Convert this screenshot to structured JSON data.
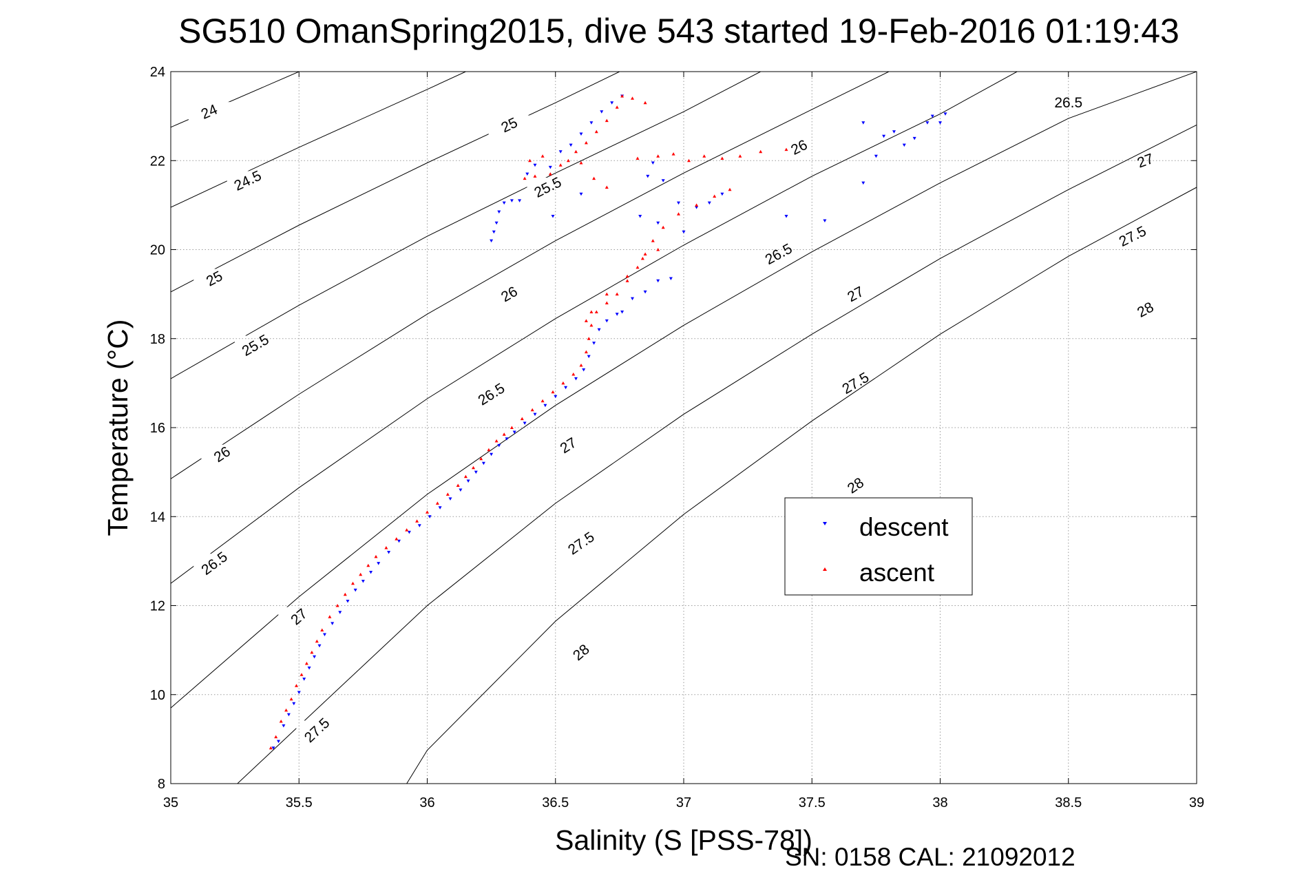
{
  "chart_data": {
    "type": "scatter",
    "title": "SG510 OmanSpring2015, dive 543 started 19-Feb-2016 01:19:43",
    "xlabel": "Salinity (S [PSS-78])",
    "ylabel": "Temperature (°C)",
    "xlim": [
      35,
      39
    ],
    "ylim": [
      8,
      24
    ],
    "x_ticks": [
      "35",
      "35.5",
      "36",
      "36.5",
      "37",
      "37.5",
      "38",
      "38.5",
      "39"
    ],
    "y_ticks": [
      "8",
      "10",
      "12",
      "14",
      "16",
      "18",
      "20",
      "22",
      "24"
    ],
    "grid": true,
    "legend_position": "right",
    "footer": "SN: 0158  CAL: 21092012",
    "colors": {
      "descent": "#0000ff",
      "ascent": "#ff0000",
      "contour": "#000000",
      "grid": "#9a9a9a"
    },
    "contours": [
      {
        "label": "24",
        "points": [
          [
            35.0,
            22.75
          ],
          [
            35.5,
            24.0
          ]
        ],
        "label_at": [
          [
            35.15,
            23.1
          ]
        ]
      },
      {
        "label": "24.5",
        "points": [
          [
            35.0,
            20.95
          ],
          [
            35.5,
            22.3
          ],
          [
            36.0,
            23.6
          ],
          [
            36.15,
            24.0
          ]
        ],
        "label_at": [
          [
            35.3,
            21.55
          ]
        ]
      },
      {
        "label": "25",
        "points": [
          [
            35.0,
            19.05
          ],
          [
            35.5,
            20.55
          ],
          [
            36.0,
            21.95
          ],
          [
            36.5,
            23.3
          ],
          [
            36.75,
            24.0
          ]
        ],
        "label_at": [
          [
            35.17,
            19.35
          ],
          [
            36.32,
            22.8
          ]
        ]
      },
      {
        "label": "25.5",
        "points": [
          [
            35.0,
            17.1
          ],
          [
            35.5,
            18.75
          ],
          [
            36.0,
            20.3
          ],
          [
            36.5,
            21.72
          ],
          [
            37.0,
            23.1
          ],
          [
            37.3,
            24.0
          ]
        ],
        "label_at": [
          [
            35.33,
            17.85
          ],
          [
            36.47,
            21.4
          ]
        ]
      },
      {
        "label": "26",
        "points": [
          [
            35.0,
            14.85
          ],
          [
            35.5,
            16.75
          ],
          [
            36.0,
            18.55
          ],
          [
            36.5,
            20.2
          ],
          [
            37.0,
            21.72
          ],
          [
            37.5,
            23.15
          ],
          [
            37.8,
            24.0
          ]
        ],
        "label_at": [
          [
            35.2,
            15.4
          ],
          [
            36.32,
            19.0
          ],
          [
            37.45,
            22.3
          ]
        ]
      },
      {
        "label": "26.5",
        "points": [
          [
            35.0,
            12.5
          ],
          [
            35.5,
            14.65
          ],
          [
            36.0,
            16.65
          ],
          [
            36.5,
            18.45
          ],
          [
            37.0,
            20.1
          ],
          [
            37.5,
            21.65
          ],
          [
            38.0,
            23.05
          ],
          [
            38.3,
            24.0
          ]
        ],
        "label_at": [
          [
            35.17,
            12.95
          ],
          [
            36.25,
            16.75
          ],
          [
            37.37,
            19.9
          ],
          [
            38.5,
            23.3
          ]
        ]
      },
      {
        "label": "27",
        "points": [
          [
            35.0,
            9.7
          ],
          [
            35.5,
            12.2
          ],
          [
            36.0,
            14.5
          ],
          [
            36.5,
            16.5
          ],
          [
            37.0,
            18.3
          ],
          [
            37.5,
            19.95
          ],
          [
            38.0,
            21.5
          ],
          [
            38.5,
            22.95
          ],
          [
            39.0,
            24.0
          ]
        ],
        "label_at": [
          [
            35.5,
            11.75
          ],
          [
            36.55,
            15.6
          ],
          [
            37.67,
            19.0
          ],
          [
            38.8,
            22.0
          ]
        ]
      },
      {
        "label": "27.5",
        "points": [
          [
            35.26,
            8.0
          ],
          [
            35.5,
            9.3
          ],
          [
            36.0,
            12.0
          ],
          [
            36.5,
            14.3
          ],
          [
            37.0,
            16.3
          ],
          [
            37.5,
            18.1
          ],
          [
            38.0,
            19.8
          ],
          [
            38.5,
            21.35
          ],
          [
            39.0,
            22.8
          ]
        ],
        "label_at": [
          [
            35.57,
            9.2
          ],
          [
            36.6,
            13.4
          ],
          [
            37.67,
            17.0
          ],
          [
            38.75,
            20.3
          ]
        ]
      },
      {
        "label": "28",
        "points": [
          [
            35.92,
            8.0
          ],
          [
            36.0,
            8.75
          ],
          [
            36.5,
            11.65
          ],
          [
            37.0,
            14.05
          ],
          [
            37.5,
            16.15
          ],
          [
            38.0,
            18.1
          ],
          [
            38.5,
            19.85
          ],
          [
            39.0,
            21.4
          ]
        ],
        "label_at": [
          [
            36.6,
            10.95
          ],
          [
            37.67,
            14.7
          ],
          [
            38.8,
            18.65
          ]
        ]
      }
    ],
    "series": [
      {
        "name": "descent",
        "marker": "triangle-down",
        "points": [
          [
            35.4,
            8.8
          ],
          [
            35.42,
            8.95
          ],
          [
            35.44,
            9.3
          ],
          [
            35.46,
            9.55
          ],
          [
            35.48,
            9.8
          ],
          [
            35.5,
            10.05
          ],
          [
            35.52,
            10.35
          ],
          [
            35.54,
            10.6
          ],
          [
            35.56,
            10.85
          ],
          [
            35.58,
            11.1
          ],
          [
            35.6,
            11.35
          ],
          [
            35.63,
            11.6
          ],
          [
            35.66,
            11.85
          ],
          [
            35.69,
            12.1
          ],
          [
            35.72,
            12.35
          ],
          [
            35.75,
            12.55
          ],
          [
            35.78,
            12.75
          ],
          [
            35.81,
            12.95
          ],
          [
            35.85,
            13.2
          ],
          [
            35.89,
            13.45
          ],
          [
            35.93,
            13.65
          ],
          [
            35.97,
            13.8
          ],
          [
            36.01,
            14.0
          ],
          [
            36.05,
            14.2
          ],
          [
            36.09,
            14.4
          ],
          [
            36.13,
            14.6
          ],
          [
            36.16,
            14.8
          ],
          [
            36.19,
            15.0
          ],
          [
            36.22,
            15.2
          ],
          [
            36.25,
            15.4
          ],
          [
            36.28,
            15.6
          ],
          [
            36.31,
            15.75
          ],
          [
            36.34,
            15.9
          ],
          [
            36.38,
            16.1
          ],
          [
            36.42,
            16.3
          ],
          [
            36.46,
            16.5
          ],
          [
            36.5,
            16.7
          ],
          [
            36.54,
            16.9
          ],
          [
            36.58,
            17.1
          ],
          [
            36.61,
            17.3
          ],
          [
            36.63,
            17.6
          ],
          [
            36.65,
            17.9
          ],
          [
            36.67,
            18.2
          ],
          [
            36.7,
            18.4
          ],
          [
            36.74,
            18.55
          ],
          [
            36.76,
            18.6
          ],
          [
            36.25,
            20.2
          ],
          [
            36.26,
            20.4
          ],
          [
            36.27,
            20.6
          ],
          [
            36.28,
            20.85
          ],
          [
            36.3,
            21.05
          ],
          [
            36.33,
            21.1
          ],
          [
            36.36,
            21.1
          ],
          [
            36.49,
            20.75
          ],
          [
            36.6,
            21.25
          ],
          [
            36.39,
            21.7
          ],
          [
            36.42,
            21.9
          ],
          [
            36.48,
            21.85
          ],
          [
            36.52,
            22.2
          ],
          [
            36.56,
            22.35
          ],
          [
            36.6,
            22.6
          ],
          [
            36.64,
            22.85
          ],
          [
            36.68,
            23.1
          ],
          [
            36.72,
            23.3
          ],
          [
            36.76,
            23.45
          ],
          [
            36.86,
            21.65
          ],
          [
            36.88,
            21.95
          ],
          [
            36.92,
            21.55
          ],
          [
            36.98,
            21.05
          ],
          [
            37.05,
            20.95
          ],
          [
            37.1,
            21.05
          ],
          [
            37.15,
            21.25
          ],
          [
            36.83,
            20.75
          ],
          [
            36.9,
            20.6
          ],
          [
            37.0,
            20.4
          ],
          [
            36.9,
            19.3
          ],
          [
            36.95,
            19.35
          ],
          [
            36.85,
            19.05
          ],
          [
            36.8,
            18.9
          ],
          [
            37.4,
            20.75
          ],
          [
            37.55,
            20.65
          ],
          [
            37.7,
            22.85
          ],
          [
            37.78,
            22.55
          ],
          [
            37.82,
            22.65
          ],
          [
            37.86,
            22.35
          ],
          [
            37.9,
            22.5
          ],
          [
            37.95,
            22.85
          ],
          [
            37.97,
            23.0
          ],
          [
            38.0,
            22.85
          ],
          [
            38.02,
            23.05
          ],
          [
            37.75,
            22.1
          ],
          [
            37.7,
            21.5
          ]
        ]
      },
      {
        "name": "ascent",
        "marker": "triangle-up",
        "points": [
          [
            35.39,
            8.8
          ],
          [
            35.41,
            9.05
          ],
          [
            35.43,
            9.4
          ],
          [
            35.45,
            9.65
          ],
          [
            35.47,
            9.9
          ],
          [
            35.49,
            10.2
          ],
          [
            35.51,
            10.45
          ],
          [
            35.53,
            10.7
          ],
          [
            35.55,
            10.95
          ],
          [
            35.57,
            11.2
          ],
          [
            35.59,
            11.45
          ],
          [
            35.62,
            11.75
          ],
          [
            35.65,
            12.0
          ],
          [
            35.68,
            12.25
          ],
          [
            35.71,
            12.5
          ],
          [
            35.74,
            12.7
          ],
          [
            35.77,
            12.9
          ],
          [
            35.8,
            13.1
          ],
          [
            35.84,
            13.3
          ],
          [
            35.88,
            13.5
          ],
          [
            35.92,
            13.7
          ],
          [
            35.96,
            13.9
          ],
          [
            36.0,
            14.1
          ],
          [
            36.04,
            14.3
          ],
          [
            36.08,
            14.5
          ],
          [
            36.12,
            14.7
          ],
          [
            36.15,
            14.9
          ],
          [
            36.18,
            15.1
          ],
          [
            36.21,
            15.3
          ],
          [
            36.24,
            15.5
          ],
          [
            36.27,
            15.7
          ],
          [
            36.3,
            15.85
          ],
          [
            36.33,
            16.0
          ],
          [
            36.37,
            16.2
          ],
          [
            36.41,
            16.4
          ],
          [
            36.45,
            16.6
          ],
          [
            36.49,
            16.8
          ],
          [
            36.53,
            17.0
          ],
          [
            36.57,
            17.2
          ],
          [
            36.6,
            17.4
          ],
          [
            36.62,
            17.7
          ],
          [
            36.63,
            18.0
          ],
          [
            36.64,
            18.3
          ],
          [
            36.66,
            18.6
          ],
          [
            36.7,
            18.8
          ],
          [
            36.74,
            19.0
          ],
          [
            36.78,
            19.3
          ],
          [
            36.82,
            19.6
          ],
          [
            36.85,
            19.9
          ],
          [
            36.88,
            20.2
          ],
          [
            36.92,
            20.5
          ],
          [
            36.98,
            20.8
          ],
          [
            37.05,
            21.0
          ],
          [
            37.12,
            21.2
          ],
          [
            37.18,
            21.35
          ],
          [
            36.38,
            21.6
          ],
          [
            36.42,
            21.65
          ],
          [
            36.48,
            21.7
          ],
          [
            36.52,
            21.9
          ],
          [
            36.55,
            22.0
          ],
          [
            36.58,
            22.2
          ],
          [
            36.62,
            22.4
          ],
          [
            36.66,
            22.65
          ],
          [
            36.7,
            22.9
          ],
          [
            36.74,
            23.2
          ],
          [
            36.76,
            23.45
          ],
          [
            36.8,
            23.4
          ],
          [
            36.85,
            23.3
          ],
          [
            36.4,
            22.0
          ],
          [
            36.45,
            22.1
          ],
          [
            36.6,
            21.95
          ],
          [
            36.65,
            21.6
          ],
          [
            36.7,
            21.4
          ],
          [
            36.82,
            22.05
          ],
          [
            36.9,
            22.1
          ],
          [
            36.96,
            22.15
          ],
          [
            37.02,
            22.0
          ],
          [
            37.08,
            22.1
          ],
          [
            37.15,
            22.05
          ],
          [
            37.22,
            22.1
          ],
          [
            37.3,
            22.2
          ],
          [
            37.4,
            22.25
          ],
          [
            36.62,
            18.4
          ],
          [
            36.64,
            18.6
          ],
          [
            36.7,
            19.0
          ],
          [
            36.78,
            19.4
          ],
          [
            36.84,
            19.8
          ],
          [
            36.9,
            20.0
          ]
        ]
      }
    ]
  }
}
